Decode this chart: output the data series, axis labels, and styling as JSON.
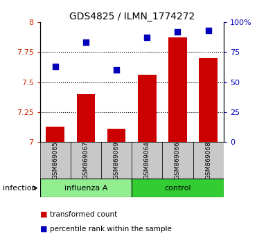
{
  "title": "GDS4825 / ILMN_1774272",
  "categories": [
    "GSM869065",
    "GSM869067",
    "GSM869069",
    "GSM869064",
    "GSM869066",
    "GSM869068"
  ],
  "bar_values": [
    7.13,
    7.4,
    7.11,
    7.56,
    7.87,
    7.7
  ],
  "bar_color": "#CC0000",
  "scatter_values": [
    7.63,
    7.83,
    7.6,
    7.87,
    7.92,
    7.93
  ],
  "scatter_color": "#0000BB",
  "ylim_left": [
    7.0,
    8.0
  ],
  "ylim_right": [
    0,
    100
  ],
  "yticks_left": [
    7.0,
    7.25,
    7.5,
    7.75,
    8.0
  ],
  "ytick_labels_left": [
    "7",
    "7.25",
    "7.5",
    "7.75",
    "8"
  ],
  "yticks_right": [
    0,
    25,
    50,
    75,
    100
  ],
  "ytick_labels_right": [
    "0",
    "25",
    "50",
    "75",
    "100%"
  ],
  "grid_lines": [
    7.25,
    7.5,
    7.75
  ],
  "left_axis_color": "#CC2200",
  "right_axis_color": "#0000BB",
  "legend_entries": [
    "transformed count",
    "percentile rank within the sample"
  ],
  "infection_label": "infection",
  "bar_width": 0.6,
  "scatter_marker": "s",
  "scatter_size": 30,
  "influenza_color": "#90EE90",
  "control_color": "#33CC33",
  "label_bg_color": "#C8C8C8",
  "title_fontsize": 10
}
